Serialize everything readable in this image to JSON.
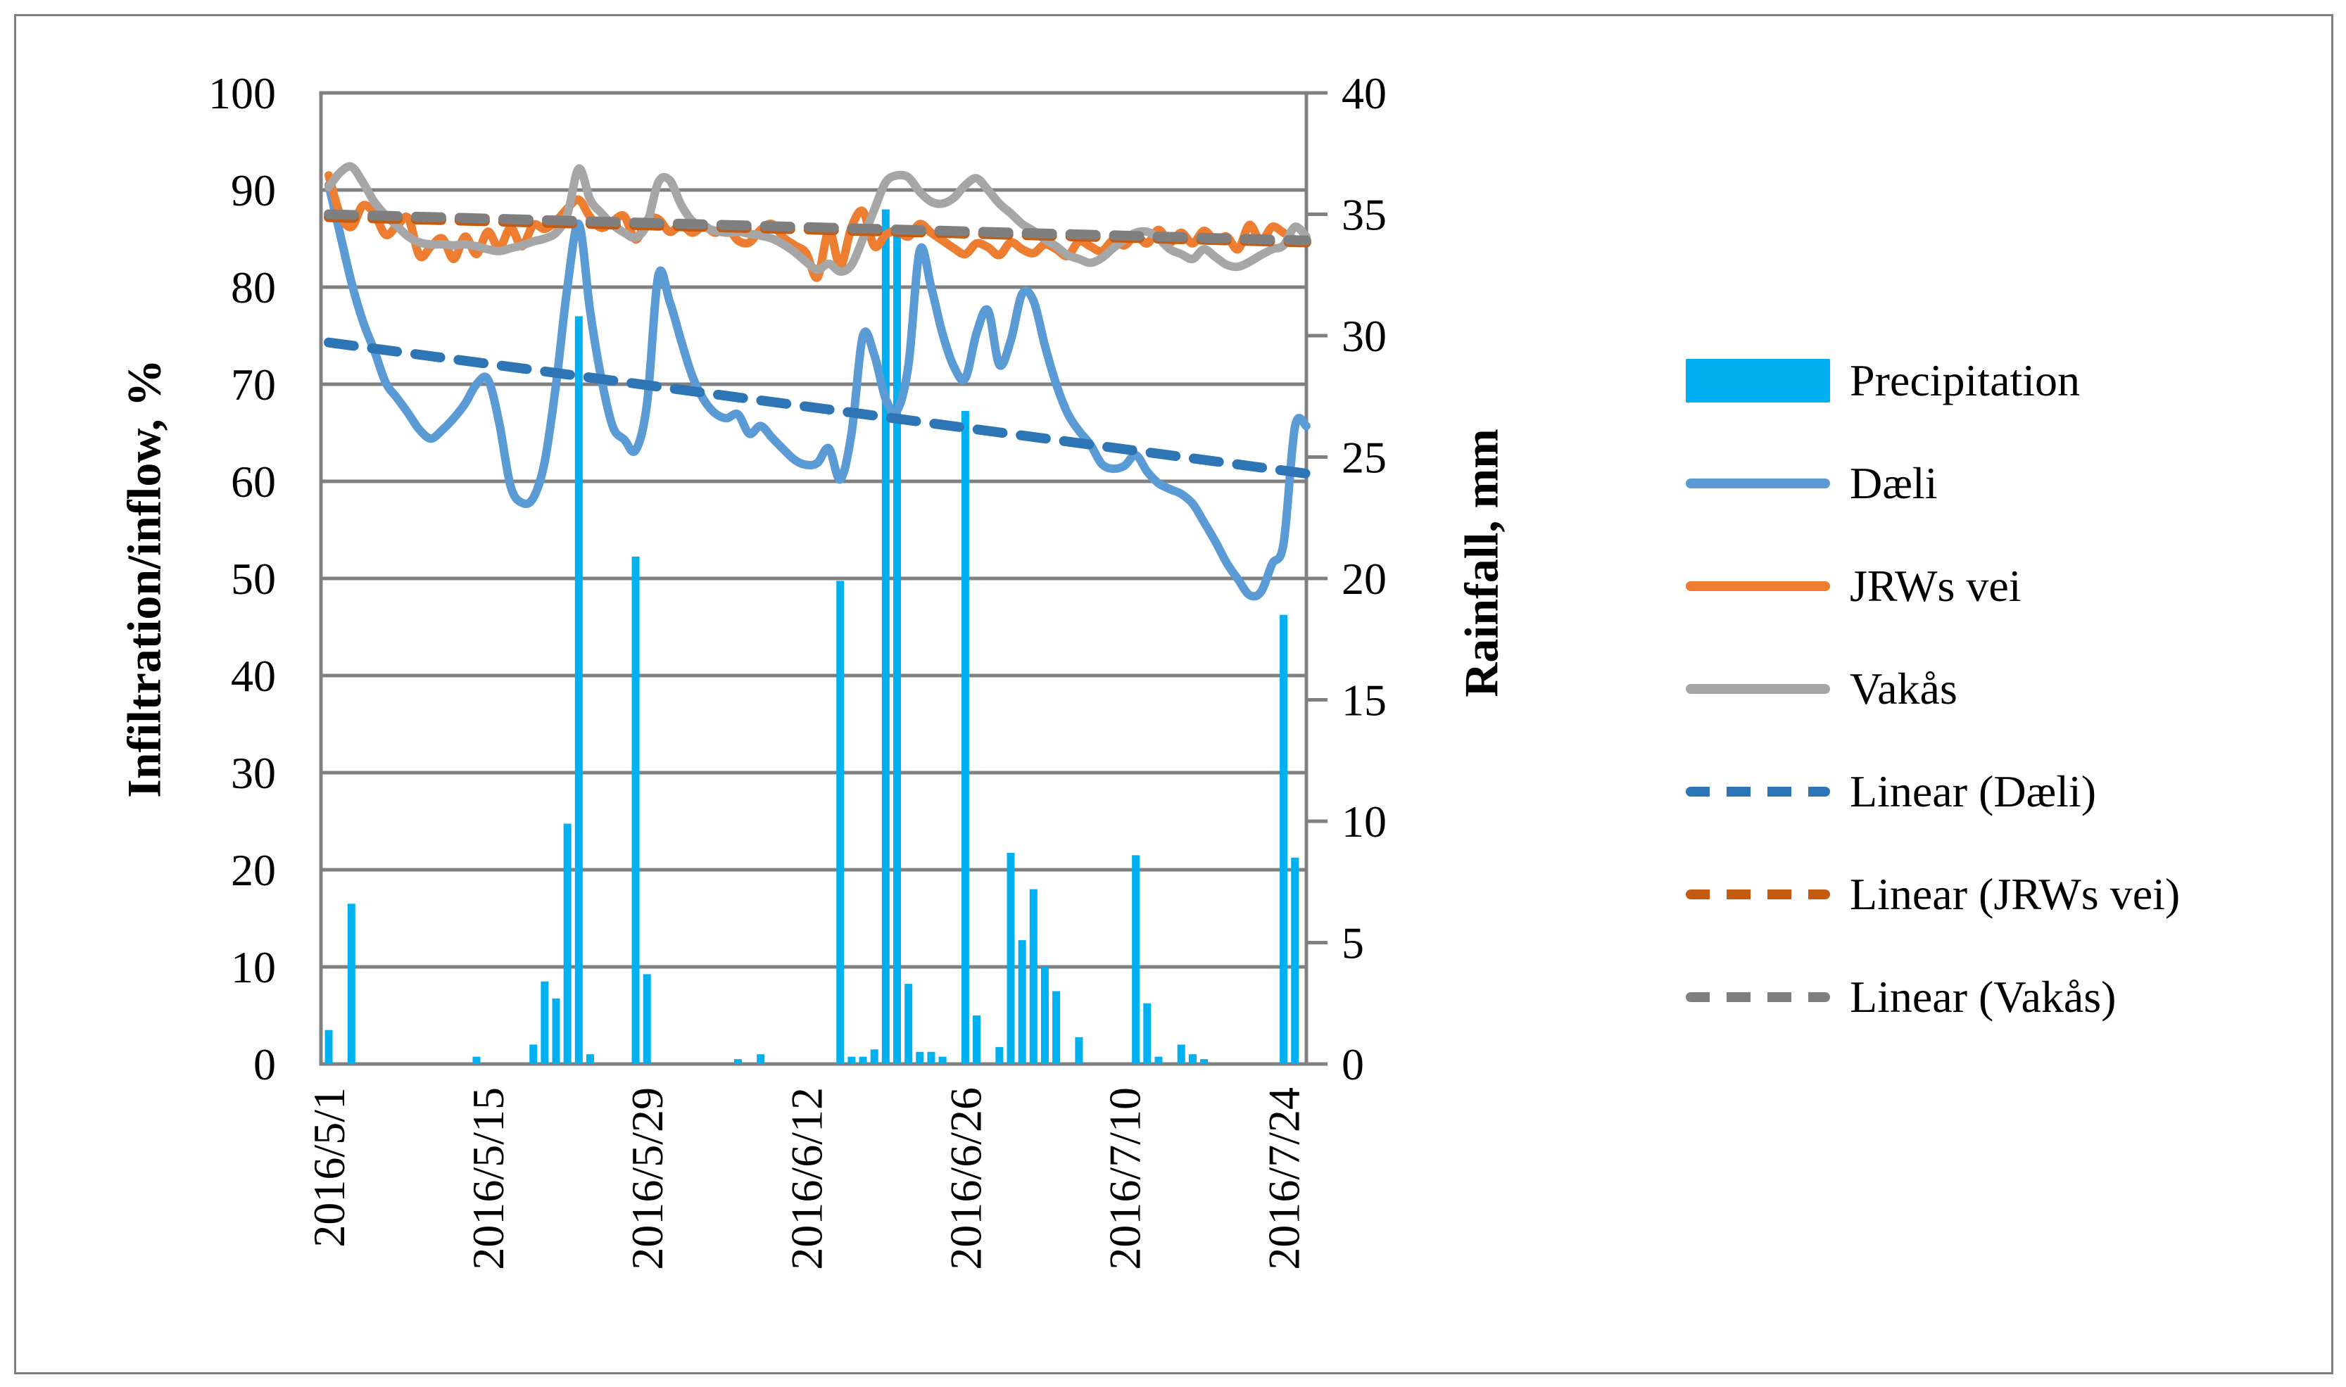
{
  "figure": {
    "background": "#ffffff",
    "border_color": "#7f7f7f",
    "gridline_color": "#808080",
    "text_color": "#000000"
  },
  "chart_data": {
    "type": "combo_bar_line",
    "x": {
      "start_date": "2016/5/1",
      "interval": "daily",
      "days_total": 87,
      "tick_every_days": 14,
      "tick_labels": [
        "2016/5/1",
        "2016/5/15",
        "2016/5/29",
        "2016/6/12",
        "2016/6/26",
        "2016/7/10",
        "2016/7/24"
      ]
    },
    "y_left": {
      "label": "Infiltration/inflow, %",
      "min": 0,
      "max": 100,
      "step": 10,
      "tick_labels": [
        "100",
        "90",
        "80",
        "70",
        "60",
        "50",
        "40",
        "30",
        "20",
        "10",
        "0"
      ],
      "grid": true
    },
    "y_right": {
      "label": "Rainfall, mm",
      "min": 0,
      "max": 40,
      "step": 5,
      "tick_labels": [
        "40",
        "35",
        "30",
        "25",
        "20",
        "15",
        "10",
        "5",
        "0"
      ]
    },
    "series": [
      {
        "name": "Precipitation",
        "type": "bar",
        "axis": "right",
        "color": "#00B0F0",
        "points_day_mm": [
          [
            0,
            1.4
          ],
          [
            2,
            6.6
          ],
          [
            13,
            0.3
          ],
          [
            18,
            0.8
          ],
          [
            19,
            3.4
          ],
          [
            20,
            2.7
          ],
          [
            21,
            9.9
          ],
          [
            22,
            30.8
          ],
          [
            23,
            0.4
          ],
          [
            27,
            20.9
          ],
          [
            28,
            3.7
          ],
          [
            36,
            0.2
          ],
          [
            38,
            0.4
          ],
          [
            45,
            19.9
          ],
          [
            46,
            0.3
          ],
          [
            47,
            0.3
          ],
          [
            48,
            0.6
          ],
          [
            49,
            35.2
          ],
          [
            50,
            34.3
          ],
          [
            51,
            3.3
          ],
          [
            52,
            0.5
          ],
          [
            53,
            0.5
          ],
          [
            54,
            0.3
          ],
          [
            56,
            26.9
          ],
          [
            57,
            2.0
          ],
          [
            59,
            0.7
          ],
          [
            60,
            8.7
          ],
          [
            61,
            5.1
          ],
          [
            62,
            7.2
          ],
          [
            63,
            4.0
          ],
          [
            64,
            3.0
          ],
          [
            66,
            1.1
          ],
          [
            71,
            8.6
          ],
          [
            72,
            2.5
          ],
          [
            73,
            0.3
          ],
          [
            75,
            0.8
          ],
          [
            76,
            0.4
          ],
          [
            77,
            0.2
          ],
          [
            84,
            18.5
          ],
          [
            85,
            8.5
          ]
        ]
      },
      {
        "name": "Dæli",
        "type": "line",
        "axis": "left",
        "color": "#5B9BD5",
        "values": [
          90.5,
          85.5,
          80.5,
          76.5,
          73.5,
          70.2,
          68.6,
          67.0,
          65.3,
          64.4,
          65.3,
          66.5,
          68.0,
          70.0,
          70.5,
          66.0,
          59.5,
          57.8,
          58.3,
          62.0,
          70.0,
          80.0,
          86.5,
          77.5,
          70.5,
          65.6,
          64.3,
          63.2,
          68.0,
          81.2,
          78.5,
          74.5,
          70.8,
          68.4,
          67.0,
          66.5,
          66.9,
          64.9,
          65.7,
          64.5,
          63.3,
          62.2,
          61.7,
          61.9,
          63.4,
          60.2,
          65.0,
          75.0,
          73.0,
          68.5,
          67.3,
          72.0,
          83.8,
          80.0,
          75.2,
          71.8,
          70.6,
          75.3,
          77.6,
          72.0,
          74.5,
          79.3,
          78.6,
          74.0,
          70.0,
          67.0,
          65.2,
          63.8,
          61.8,
          61.3,
          61.6,
          62.7,
          61.0,
          59.8,
          59.2,
          58.7,
          57.7,
          55.8,
          53.8,
          51.6,
          49.9,
          48.3,
          48.6,
          51.5,
          53.6,
          65.6,
          65.7
        ]
      },
      {
        "name": "JRWs vei",
        "type": "line",
        "axis": "left",
        "color": "#ED7D31",
        "values": [
          91.5,
          87.5,
          86.2,
          88.4,
          87.6,
          85.4,
          86.3,
          87.1,
          83.2,
          84.2,
          85.0,
          82.9,
          85.2,
          83.4,
          85.7,
          84.0,
          86.1,
          84.2,
          86.4,
          86.0,
          86.8,
          88.1,
          89.0,
          87.2,
          86.1,
          86.8,
          87.3,
          84.9,
          86.9,
          87.0,
          85.7,
          86.4,
          85.6,
          86.3,
          85.6,
          86.2,
          84.8,
          84.6,
          85.9,
          86.5,
          85.1,
          84.3,
          83.5,
          81.0,
          85.8,
          82.2,
          86.2,
          87.8,
          84.2,
          85.4,
          85.8,
          85.2,
          86.5,
          85.6,
          84.8,
          84.0,
          83.4,
          84.5,
          84.1,
          83.3,
          84.6,
          83.9,
          83.5,
          84.4,
          83.9,
          83.2,
          84.7,
          84.2,
          83.7,
          84.8,
          84.3,
          85.3,
          84.5,
          85.9,
          84.6,
          85.6,
          84.5,
          85.8,
          84.8,
          85.2,
          83.9,
          86.4,
          84.7,
          86.2,
          85.6,
          84.9,
          84.7
        ]
      },
      {
        "name": "Vakås",
        "type": "line",
        "axis": "left",
        "color": "#A6A6A6",
        "values": [
          90.3,
          91.8,
          92.4,
          90.8,
          88.8,
          87.4,
          86.3,
          85.2,
          84.6,
          84.4,
          84.4,
          84.3,
          84.4,
          84.2,
          83.9,
          83.7,
          84.0,
          84.3,
          84.7,
          85.0,
          85.6,
          87.5,
          92.2,
          89.0,
          87.6,
          86.4,
          85.6,
          85.1,
          86.5,
          90.8,
          91.0,
          88.5,
          86.8,
          86.2,
          85.8,
          85.6,
          85.7,
          85.5,
          85.3,
          85.0,
          84.4,
          83.6,
          82.6,
          81.8,
          82.4,
          81.6,
          82.3,
          85.0,
          88.0,
          90.8,
          91.5,
          91.3,
          89.8,
          88.8,
          88.6,
          89.2,
          90.5,
          91.2,
          90.0,
          88.6,
          87.6,
          86.5,
          85.8,
          84.9,
          84.2,
          83.3,
          82.9,
          82.5,
          83.0,
          84.0,
          84.9,
          85.6,
          85.7,
          85.0,
          83.9,
          83.4,
          82.9,
          83.9,
          83.1,
          82.3,
          82.1,
          82.6,
          83.3,
          83.9,
          84.3,
          86.2,
          85.2
        ]
      }
    ],
    "trendlines": [
      {
        "name": "Linear (Dæli)",
        "color": "#2E75B6",
        "start_pct": 74.3,
        "end_pct": 60.8
      },
      {
        "name": "Linear (JRWs vei)",
        "color": "#C55A11",
        "start_pct": 87.2,
        "end_pct": 84.6
      },
      {
        "name": "Linear (Vakås)",
        "color": "#7F7F7F",
        "start_pct": 87.5,
        "end_pct": 84.8
      }
    ],
    "legend_labels": [
      "Precipitation",
      "Dæli",
      "JRWs vei",
      "Vakås",
      "Linear (Dæli)",
      "Linear (JRWs vei)",
      "Linear (Vakås)"
    ],
    "legend_position": "right"
  }
}
